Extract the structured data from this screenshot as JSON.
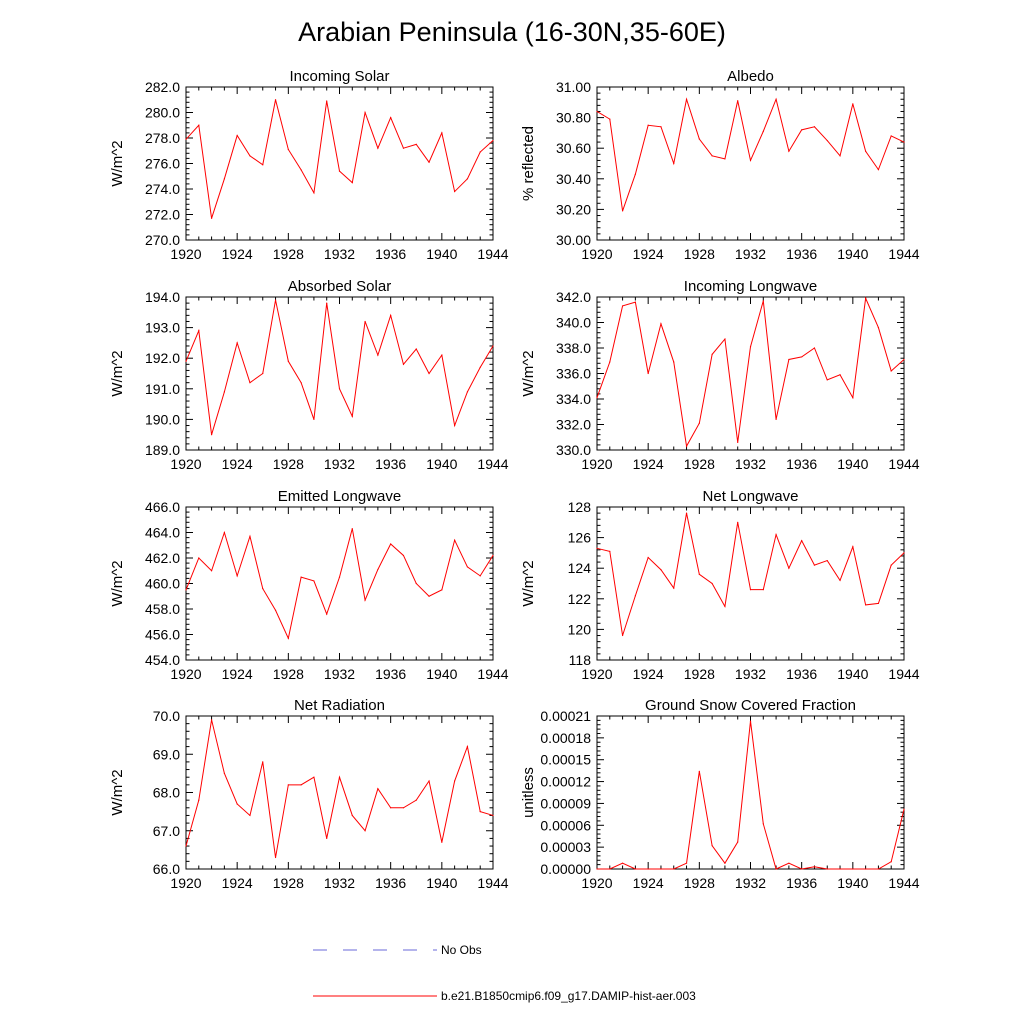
{
  "title": "Arabian Peninsula (16-30N,35-60E)",
  "series_color": "#ff0000",
  "obs_color": "#6a6ad8",
  "legend": {
    "obs_label": "No Obs",
    "model_label": "b.e21.B1850cmip6.f09_g17.DAMIP-hist-aer.003"
  },
  "chart_data": [
    {
      "type": "line",
      "title": "Incoming Solar",
      "ylabel": "W/m^2",
      "x": [
        1920,
        1921,
        1922,
        1923,
        1924,
        1925,
        1926,
        1927,
        1928,
        1929,
        1930,
        1931,
        1932,
        1933,
        1934,
        1935,
        1936,
        1937,
        1938,
        1939,
        1940,
        1941,
        1942,
        1943,
        1944
      ],
      "values": [
        277.9,
        279.0,
        271.7,
        274.8,
        278.2,
        276.6,
        275.9,
        281.0,
        277.1,
        275.5,
        273.7,
        280.9,
        275.4,
        274.5,
        280.0,
        277.2,
        279.6,
        277.2,
        277.5,
        276.1,
        278.4,
        273.8,
        274.8,
        276.9,
        277.8
      ],
      "xlim": [
        1920,
        1944
      ],
      "ylim": [
        270,
        282
      ],
      "yticks": [
        270,
        272,
        274,
        276,
        278,
        280,
        282
      ],
      "ytick_labels": [
        "270.0",
        "272.0",
        "274.0",
        "276.0",
        "278.0",
        "280.0",
        "282.0"
      ],
      "xticks": [
        1920,
        1924,
        1928,
        1932,
        1936,
        1940,
        1944
      ],
      "xtick_labels": [
        "1920",
        "1924",
        "1928",
        "1932",
        "1936",
        "1940",
        "1944"
      ]
    },
    {
      "type": "line",
      "title": "Albedo",
      "ylabel": "% reflected",
      "x": [
        1920,
        1921,
        1922,
        1923,
        1924,
        1925,
        1926,
        1927,
        1928,
        1929,
        1930,
        1931,
        1932,
        1933,
        1934,
        1935,
        1936,
        1937,
        1938,
        1939,
        1940,
        1941,
        1942,
        1943,
        1944
      ],
      "values": [
        30.84,
        30.79,
        30.19,
        30.43,
        30.75,
        30.74,
        30.5,
        30.92,
        30.66,
        30.55,
        30.53,
        30.91,
        30.52,
        30.71,
        30.92,
        30.58,
        30.72,
        30.74,
        30.65,
        30.55,
        30.89,
        30.58,
        30.46,
        30.68,
        30.64
      ],
      "xlim": [
        1920,
        1944
      ],
      "ylim": [
        30.0,
        31.0
      ],
      "yticks": [
        30.0,
        30.2,
        30.4,
        30.6,
        30.8,
        31.0
      ],
      "ytick_labels": [
        "30.00",
        "30.20",
        "30.40",
        "30.60",
        "30.80",
        "31.00"
      ],
      "xticks": [
        1920,
        1924,
        1928,
        1932,
        1936,
        1940,
        1944
      ],
      "xtick_labels": [
        "1920",
        "1924",
        "1928",
        "1932",
        "1936",
        "1940",
        "1944"
      ]
    },
    {
      "type": "line",
      "title": "Absorbed Solar",
      "ylabel": "W/m^2",
      "x": [
        1920,
        1921,
        1922,
        1923,
        1924,
        1925,
        1926,
        1927,
        1928,
        1929,
        1930,
        1931,
        1932,
        1933,
        1934,
        1935,
        1936,
        1937,
        1938,
        1939,
        1940,
        1941,
        1942,
        1943,
        1944
      ],
      "values": [
        191.9,
        192.9,
        189.5,
        190.9,
        192.5,
        191.2,
        191.5,
        193.9,
        191.9,
        191.2,
        190.0,
        193.8,
        191.0,
        190.1,
        193.2,
        192.1,
        193.4,
        191.8,
        192.3,
        191.5,
        192.1,
        189.8,
        190.9,
        191.7,
        192.4
      ],
      "xlim": [
        1920,
        1944
      ],
      "ylim": [
        189,
        194
      ],
      "yticks": [
        189,
        190,
        191,
        192,
        193,
        194
      ],
      "ytick_labels": [
        "189.0",
        "190.0",
        "191.0",
        "192.0",
        "193.0",
        "194.0"
      ],
      "xticks": [
        1920,
        1924,
        1928,
        1932,
        1936,
        1940,
        1944
      ],
      "xtick_labels": [
        "1920",
        "1924",
        "1928",
        "1932",
        "1936",
        "1940",
        "1944"
      ]
    },
    {
      "type": "line",
      "title": "Incoming Longwave",
      "ylabel": "W/m^2",
      "x": [
        1920,
        1921,
        1922,
        1923,
        1924,
        1925,
        1926,
        1927,
        1928,
        1929,
        1930,
        1931,
        1932,
        1933,
        1934,
        1935,
        1936,
        1937,
        1938,
        1939,
        1940,
        1941,
        1942,
        1943,
        1944
      ],
      "values": [
        334.1,
        336.9,
        341.3,
        341.6,
        336.0,
        339.9,
        336.9,
        330.3,
        332.1,
        337.5,
        338.7,
        330.6,
        338.1,
        341.7,
        332.4,
        337.1,
        337.3,
        338.0,
        335.5,
        335.9,
        334.1,
        341.9,
        339.6,
        336.2,
        337.1
      ],
      "xlim": [
        1920,
        1944
      ],
      "ylim": [
        330,
        342
      ],
      "yticks": [
        330,
        332,
        334,
        336,
        338,
        340,
        342
      ],
      "ytick_labels": [
        "330.0",
        "332.0",
        "334.0",
        "336.0",
        "338.0",
        "340.0",
        "342.0"
      ],
      "xticks": [
        1920,
        1924,
        1928,
        1932,
        1936,
        1940,
        1944
      ],
      "xtick_labels": [
        "1920",
        "1924",
        "1928",
        "1932",
        "1936",
        "1940",
        "1944"
      ]
    },
    {
      "type": "line",
      "title": "Emitted Longwave",
      "ylabel": "W/m^2",
      "x": [
        1920,
        1921,
        1922,
        1923,
        1924,
        1925,
        1926,
        1927,
        1928,
        1929,
        1930,
        1931,
        1932,
        1933,
        1934,
        1935,
        1936,
        1937,
        1938,
        1939,
        1940,
        1941,
        1942,
        1943,
        1944
      ],
      "values": [
        459.5,
        462.0,
        461.0,
        464.0,
        460.6,
        463.7,
        459.6,
        457.9,
        455.7,
        460.5,
        460.2,
        457.6,
        460.5,
        464.3,
        458.7,
        461.1,
        463.1,
        462.2,
        460.0,
        459.0,
        459.5,
        463.4,
        461.3,
        460.6,
        462.2
      ],
      "xlim": [
        1920,
        1944
      ],
      "ylim": [
        454,
        466
      ],
      "yticks": [
        454,
        456,
        458,
        460,
        462,
        464,
        466
      ],
      "ytick_labels": [
        "454.0",
        "456.0",
        "458.0",
        "460.0",
        "462.0",
        "464.0",
        "466.0"
      ],
      "xticks": [
        1920,
        1924,
        1928,
        1932,
        1936,
        1940,
        1944
      ],
      "xtick_labels": [
        "1920",
        "1924",
        "1928",
        "1932",
        "1936",
        "1940",
        "1944"
      ]
    },
    {
      "type": "line",
      "title": "Net Longwave",
      "ylabel": "W/m^2",
      "x": [
        1920,
        1921,
        1922,
        1923,
        1924,
        1925,
        1926,
        1927,
        1928,
        1929,
        1930,
        1931,
        1932,
        1933,
        1934,
        1935,
        1936,
        1937,
        1938,
        1939,
        1940,
        1941,
        1942,
        1943,
        1944
      ],
      "values": [
        125.3,
        125.1,
        119.6,
        122.2,
        124.7,
        123.9,
        122.7,
        127.6,
        123.6,
        123.0,
        121.5,
        127.0,
        122.6,
        122.6,
        126.2,
        124.0,
        125.8,
        124.2,
        124.5,
        123.2,
        125.4,
        121.6,
        121.7,
        124.2,
        125.0
      ],
      "xlim": [
        1920,
        1944
      ],
      "ylim": [
        118,
        128
      ],
      "yticks": [
        118,
        120,
        122,
        124,
        126,
        128
      ],
      "ytick_labels": [
        "118",
        "120",
        "122",
        "124",
        "126",
        "128"
      ],
      "xticks": [
        1920,
        1924,
        1928,
        1932,
        1936,
        1940,
        1944
      ],
      "xtick_labels": [
        "1920",
        "1924",
        "1928",
        "1932",
        "1936",
        "1940",
        "1944"
      ]
    },
    {
      "type": "line",
      "title": "Net Radiation",
      "ylabel": "W/m^2",
      "x": [
        1920,
        1921,
        1922,
        1923,
        1924,
        1925,
        1926,
        1927,
        1928,
        1929,
        1930,
        1931,
        1932,
        1933,
        1934,
        1935,
        1936,
        1937,
        1938,
        1939,
        1940,
        1941,
        1942,
        1943,
        1944
      ],
      "values": [
        66.6,
        67.8,
        69.9,
        68.5,
        67.7,
        67.4,
        68.8,
        66.3,
        68.2,
        68.2,
        68.4,
        66.8,
        68.4,
        67.4,
        67.0,
        68.1,
        67.6,
        67.6,
        67.8,
        68.3,
        66.7,
        68.3,
        69.2,
        67.5,
        67.4
      ],
      "xlim": [
        1920,
        1944
      ],
      "ylim": [
        66,
        70
      ],
      "yticks": [
        66,
        67,
        68,
        69,
        70
      ],
      "ytick_labels": [
        "66.0",
        "67.0",
        "68.0",
        "69.0",
        "70.0"
      ],
      "xticks": [
        1920,
        1924,
        1928,
        1932,
        1936,
        1940,
        1944
      ],
      "xtick_labels": [
        "1920",
        "1924",
        "1928",
        "1932",
        "1936",
        "1940",
        "1944"
      ]
    },
    {
      "type": "line",
      "title": "Ground Snow Covered Fraction",
      "ylabel": "unitless",
      "x": [
        1920,
        1921,
        1922,
        1923,
        1924,
        1925,
        1926,
        1927,
        1928,
        1929,
        1930,
        1931,
        1932,
        1933,
        1934,
        1935,
        1936,
        1937,
        1938,
        1939,
        1940,
        1941,
        1942,
        1943,
        1944
      ],
      "values": [
        0.0,
        0.0,
        8e-06,
        0.0,
        0.0,
        0.0,
        0.0,
        8e-06,
        0.000134,
        3.2e-05,
        8e-06,
        3.7e-05,
        0.000203,
        6.2e-05,
        0.0,
        8e-06,
        0.0,
        3e-06,
        0.0,
        0.0,
        0.0,
        0.0,
        0.0,
        1e-05,
        8.2e-05
      ],
      "xlim": [
        1920,
        1944
      ],
      "ylim": [
        0,
        0.00021
      ],
      "yticks": [
        0,
        3e-05,
        6e-05,
        9e-05,
        0.00012,
        0.00015,
        0.00018,
        0.00021
      ],
      "ytick_labels": [
        "0.00000",
        "0.00003",
        "0.00006",
        "0.00009",
        "0.00012",
        "0.00015",
        "0.00018",
        "0.00021"
      ],
      "xticks": [
        1920,
        1924,
        1928,
        1932,
        1936,
        1940,
        1944
      ],
      "xtick_labels": [
        "1920",
        "1924",
        "1928",
        "1932",
        "1936",
        "1940",
        "1944"
      ]
    }
  ]
}
